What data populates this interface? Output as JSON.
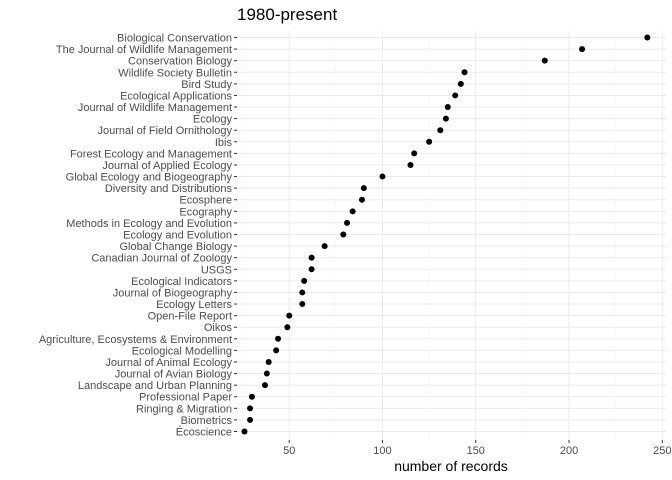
{
  "chart_data": {
    "type": "scatter",
    "title": "1980-present",
    "xlabel": "number of records",
    "ylabel": "",
    "xlim": [
      22,
      252
    ],
    "x_ticks": [
      50,
      100,
      150,
      200,
      250
    ],
    "grid": true,
    "categories": [
      "Biological Conservation",
      "The Journal of Wildlife Management",
      "Conservation Biology",
      "Wildlife Society Bulletin",
      "Bird Study",
      "Ecological Applications",
      "Journal of Wildlife Management",
      "Ecology",
      "Journal of Field Ornithology",
      "Ibis",
      "Forest Ecology and Management",
      "Journal of Applied Ecology",
      "Global Ecology and Biogeography",
      "Diversity and Distributions",
      "Ecosphere",
      "Ecography",
      "Methods in Ecology and Evolution",
      "Ecology and Evolution",
      "Global Change Biology",
      "Canadian Journal of Zoology",
      "USGS",
      "Ecological Indicators",
      "Journal of Biogeography",
      "Ecology Letters",
      "Open-File Report",
      "Oikos",
      "Agriculture, Ecosystems & Environment",
      "Ecological Modelling",
      "Journal of Animal Ecology",
      "Journal of Avian Biology",
      "Landscape and Urban Planning",
      "Professional Paper",
      "Ringing & Migration",
      "Biometrics",
      "Écoscience"
    ],
    "values": [
      242,
      207,
      187,
      144,
      142,
      139,
      135,
      134,
      131,
      125,
      117,
      115,
      100,
      90,
      89,
      84,
      81,
      79,
      69,
      62,
      62,
      58,
      57,
      57,
      50,
      49,
      44,
      43,
      39,
      38,
      37,
      30,
      29,
      29,
      26
    ]
  }
}
